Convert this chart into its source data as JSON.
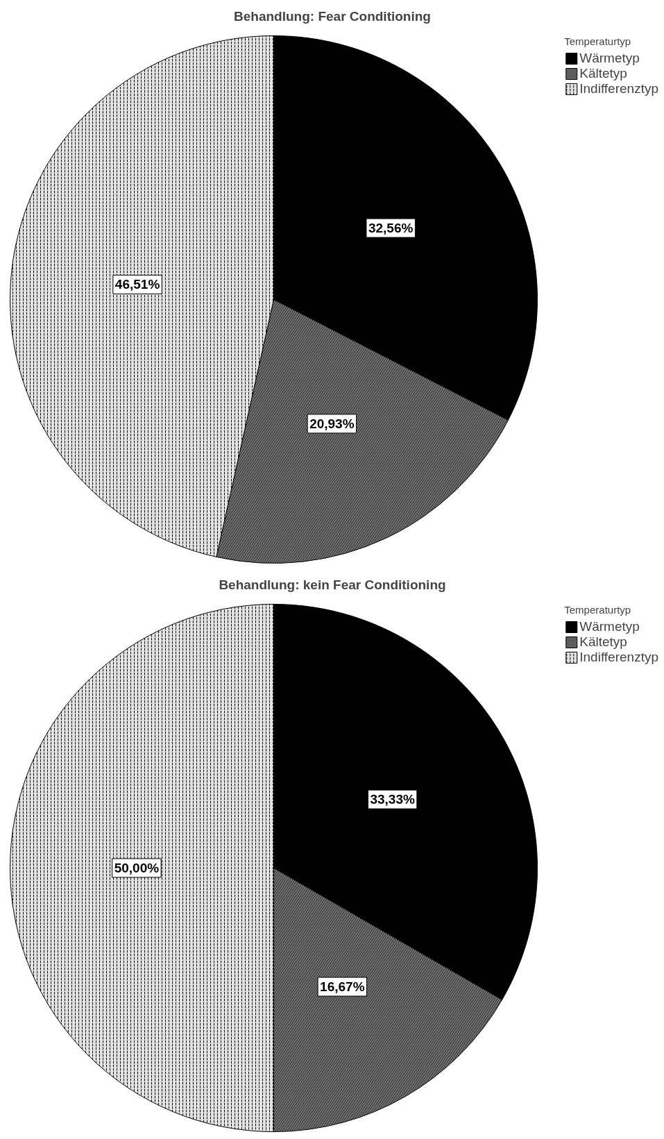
{
  "chart_data": [
    {
      "type": "pie",
      "title": "Behandlung: Fear Conditioning",
      "categories": [
        "Wärmetyp",
        "Kältetyp",
        "Indifferenztyp"
      ],
      "values": [
        32.56,
        20.93,
        46.51
      ],
      "colors": [
        "#000000",
        "#9a9a9a",
        "#e2e2e2"
      ],
      "value_labels": [
        "32,56%",
        "20,93%",
        "46,51%"
      ],
      "legend": "top right",
      "legend_title": "Temperaturtyp"
    },
    {
      "type": "pie",
      "title": "Behandlung: kein Fear Conditioning",
      "categories": [
        "Wärmetyp",
        "Kältetyp",
        "Indifferenztyp"
      ],
      "values": [
        33.33,
        16.67,
        50.0
      ],
      "colors": [
        "#000000",
        "#9a9a9a",
        "#e2e2e2"
      ],
      "value_labels": [
        "33,33%",
        "16,67%",
        "50,00%"
      ],
      "legend": "top right",
      "legend_title": "Temperaturtyp"
    }
  ]
}
